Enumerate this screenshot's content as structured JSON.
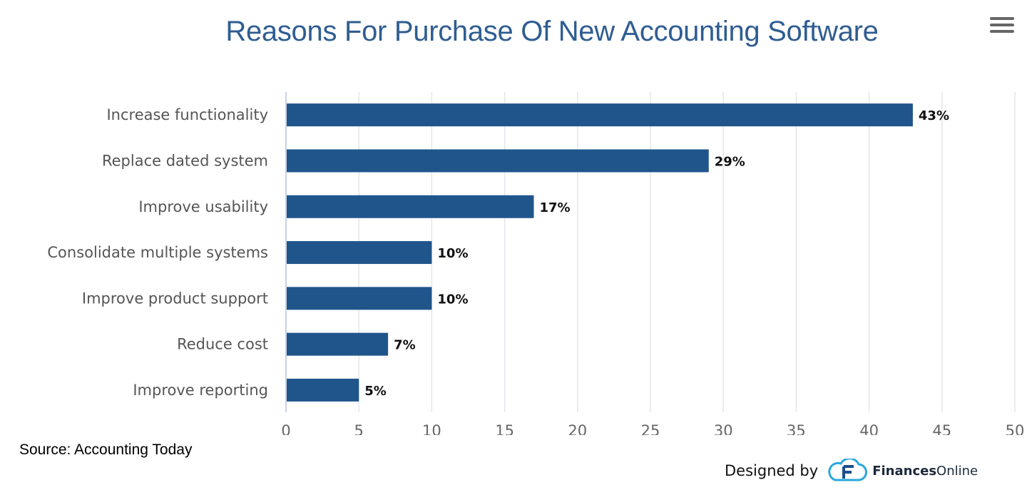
{
  "chart_data": {
    "type": "bar",
    "orientation": "horizontal",
    "title": "Reasons For Purchase Of New Accounting Software",
    "categories": [
      "Increase functionality",
      "Replace dated system",
      "Improve usability",
      "Consolidate multiple systems",
      "Improve product support",
      "Reduce cost",
      "Improve reporting"
    ],
    "values": [
      43,
      29,
      17,
      10,
      10,
      7,
      5
    ],
    "data_labels": [
      "43%",
      "29%",
      "17%",
      "10%",
      "10%",
      "7%",
      "5%"
    ],
    "xlim": [
      0,
      50
    ],
    "xticks": [
      0,
      5,
      10,
      15,
      20,
      25,
      30,
      35,
      40,
      45,
      50
    ],
    "xlabel": "",
    "ylabel": "",
    "grid": true,
    "legend": "none",
    "bar_color": "#20558c",
    "grid_color": "#e3e6ec"
  },
  "source": "Source: Accounting Today",
  "credit": {
    "label": "Designed by",
    "brand_bold": "Finances",
    "brand_regular": "Online"
  },
  "menu_icon": "hamburger-menu-icon",
  "logo_icon": "finances-online-cloud-icon"
}
